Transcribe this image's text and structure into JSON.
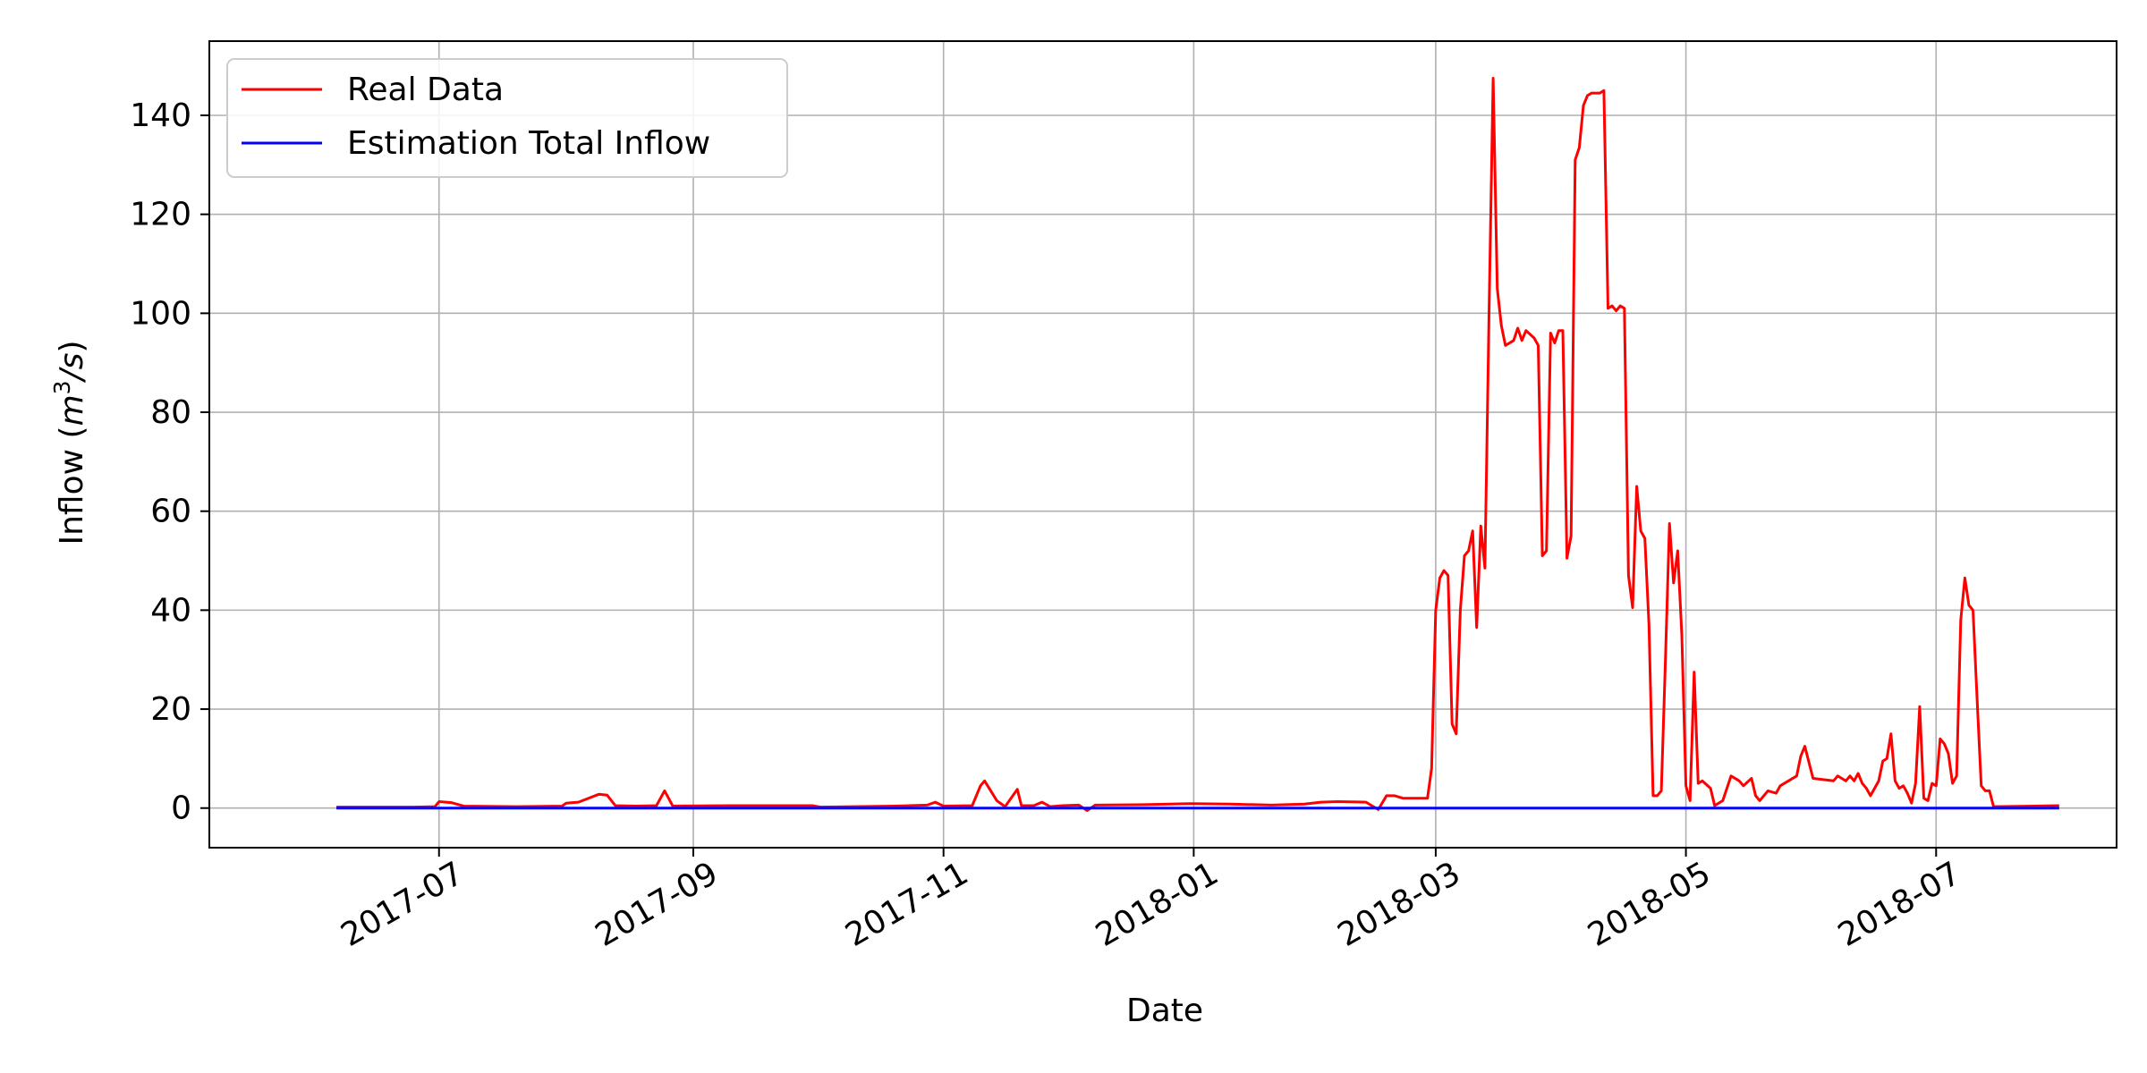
{
  "chart_data": {
    "type": "line",
    "xlabel": "Date",
    "ylabel": "Inflow",
    "ylabel_unit_base": "m",
    "ylabel_unit_exp": "3",
    "ylabel_unit_rest": "/s",
    "xlim": [
      "2017-05-06",
      "2018-08-14"
    ],
    "ylim": [
      -8,
      155
    ],
    "grid": true,
    "legend_position": "upper left",
    "x_ticks": [
      "2017-07",
      "2017-09",
      "2017-11",
      "2018-01",
      "2018-03",
      "2018-05",
      "2018-07"
    ],
    "x_tick_dates": [
      "2017-07-01",
      "2017-09-01",
      "2017-11-01",
      "2018-01-01",
      "2018-03-01",
      "2018-05-01",
      "2018-07-01"
    ],
    "y_ticks": [
      0,
      20,
      40,
      60,
      80,
      100,
      120,
      140
    ],
    "series": [
      {
        "name": "Real Data",
        "color": "#ff0000",
        "points": [
          [
            "2017-06-06",
            0.2
          ],
          [
            "2017-06-25",
            0.2
          ],
          [
            "2017-06-30",
            0.3
          ],
          [
            "2017-07-01",
            1.3
          ],
          [
            "2017-07-04",
            1.1
          ],
          [
            "2017-07-07",
            0.4
          ],
          [
            "2017-07-20",
            0.3
          ],
          [
            "2017-07-31",
            0.4
          ],
          [
            "2017-08-01",
            1.0
          ],
          [
            "2017-08-04",
            1.2
          ],
          [
            "2017-08-09",
            2.8
          ],
          [
            "2017-08-11",
            2.6
          ],
          [
            "2017-08-13",
            0.5
          ],
          [
            "2017-08-18",
            0.4
          ],
          [
            "2017-08-23",
            0.5
          ],
          [
            "2017-08-25",
            3.5
          ],
          [
            "2017-08-27",
            0.4
          ],
          [
            "2017-09-10",
            0.5
          ],
          [
            "2017-09-30",
            0.5
          ],
          [
            "2017-10-02",
            0.2
          ],
          [
            "2017-10-20",
            0.4
          ],
          [
            "2017-10-28",
            0.6
          ],
          [
            "2017-10-30",
            1.2
          ],
          [
            "2017-11-01",
            0.4
          ],
          [
            "2017-11-08",
            0.5
          ],
          [
            "2017-11-10",
            4.5
          ],
          [
            "2017-11-11",
            5.5
          ],
          [
            "2017-11-14",
            1.5
          ],
          [
            "2017-11-16",
            0.3
          ],
          [
            "2017-11-19",
            3.8
          ],
          [
            "2017-11-20",
            0.5
          ],
          [
            "2017-11-23",
            0.5
          ],
          [
            "2017-11-25",
            1.2
          ],
          [
            "2017-11-27",
            0.3
          ],
          [
            "2017-11-30",
            0.5
          ],
          [
            "2017-12-04",
            0.6
          ],
          [
            "2017-12-06",
            -0.5
          ],
          [
            "2017-12-08",
            0.6
          ],
          [
            "2017-12-20",
            0.7
          ],
          [
            "2017-12-31",
            0.9
          ],
          [
            "2018-01-10",
            0.8
          ],
          [
            "2018-01-20",
            0.6
          ],
          [
            "2018-01-28",
            0.8
          ],
          [
            "2018-02-01",
            1.2
          ],
          [
            "2018-02-05",
            1.3
          ],
          [
            "2018-02-12",
            1.2
          ],
          [
            "2018-02-15",
            -0.3
          ],
          [
            "2018-02-17",
            2.5
          ],
          [
            "2018-02-19",
            2.5
          ],
          [
            "2018-02-21",
            2.0
          ],
          [
            "2018-02-27",
            2.0
          ],
          [
            "2018-02-28",
            8.0
          ],
          [
            "2018-03-01",
            40.0
          ],
          [
            "2018-03-02",
            46.5
          ],
          [
            "2018-03-03",
            48.0
          ],
          [
            "2018-03-04",
            47.0
          ],
          [
            "2018-03-05",
            17.0
          ],
          [
            "2018-03-06",
            15.0
          ],
          [
            "2018-03-07",
            40.0
          ],
          [
            "2018-03-08",
            51.0
          ],
          [
            "2018-03-09",
            52.0
          ],
          [
            "2018-03-10",
            56.0
          ],
          [
            "2018-03-11",
            36.5
          ],
          [
            "2018-03-12",
            57.0
          ],
          [
            "2018-03-13",
            48.5
          ],
          [
            "2018-03-14",
            100.0
          ],
          [
            "2018-03-15",
            147.5
          ],
          [
            "2018-03-16",
            105.0
          ],
          [
            "2018-03-17",
            97.5
          ],
          [
            "2018-03-18",
            93.5
          ],
          [
            "2018-03-20",
            94.5
          ],
          [
            "2018-03-21",
            97.0
          ],
          [
            "2018-03-22",
            94.5
          ],
          [
            "2018-03-23",
            96.5
          ],
          [
            "2018-03-25",
            95.0
          ],
          [
            "2018-03-26",
            93.5
          ],
          [
            "2018-03-27",
            51.0
          ],
          [
            "2018-03-28",
            52.0
          ],
          [
            "2018-03-29",
            96.0
          ],
          [
            "2018-03-30",
            94.0
          ],
          [
            "2018-03-31",
            96.5
          ],
          [
            "2018-04-01",
            96.5
          ],
          [
            "2018-04-02",
            50.5
          ],
          [
            "2018-04-03",
            55.0
          ],
          [
            "2018-04-04",
            131.0
          ],
          [
            "2018-04-05",
            133.5
          ],
          [
            "2018-04-06",
            142.0
          ],
          [
            "2018-04-07",
            144.0
          ],
          [
            "2018-04-08",
            144.5
          ],
          [
            "2018-04-10",
            144.5
          ],
          [
            "2018-04-11",
            145.0
          ],
          [
            "2018-04-12",
            101.0
          ],
          [
            "2018-04-13",
            101.5
          ],
          [
            "2018-04-14",
            100.5
          ],
          [
            "2018-04-15",
            101.5
          ],
          [
            "2018-04-16",
            101.0
          ],
          [
            "2018-04-17",
            47.0
          ],
          [
            "2018-04-18",
            40.5
          ],
          [
            "2018-04-19",
            65.0
          ],
          [
            "2018-04-20",
            56.0
          ],
          [
            "2018-04-21",
            54.5
          ],
          [
            "2018-04-22",
            37.0
          ],
          [
            "2018-04-23",
            2.5
          ],
          [
            "2018-04-24",
            2.5
          ],
          [
            "2018-04-25",
            3.5
          ],
          [
            "2018-04-26",
            30.0
          ],
          [
            "2018-04-27",
            57.5
          ],
          [
            "2018-04-28",
            45.5
          ],
          [
            "2018-04-29",
            52.0
          ],
          [
            "2018-04-30",
            35.0
          ],
          [
            "2018-05-01",
            4.5
          ],
          [
            "2018-05-02",
            1.5
          ],
          [
            "2018-05-03",
            27.5
          ],
          [
            "2018-05-04",
            5.0
          ],
          [
            "2018-05-05",
            5.5
          ],
          [
            "2018-05-07",
            4.0
          ],
          [
            "2018-05-08",
            0.5
          ],
          [
            "2018-05-10",
            1.5
          ],
          [
            "2018-05-12",
            6.5
          ],
          [
            "2018-05-14",
            5.5
          ],
          [
            "2018-05-15",
            4.5
          ],
          [
            "2018-05-17",
            6.0
          ],
          [
            "2018-05-18",
            2.5
          ],
          [
            "2018-05-19",
            1.5
          ],
          [
            "2018-05-21",
            3.5
          ],
          [
            "2018-05-23",
            3.0
          ],
          [
            "2018-05-24",
            4.5
          ],
          [
            "2018-05-26",
            5.5
          ],
          [
            "2018-05-28",
            6.5
          ],
          [
            "2018-05-29",
            10.5
          ],
          [
            "2018-05-30",
            12.5
          ],
          [
            "2018-06-01",
            6.0
          ],
          [
            "2018-06-06",
            5.5
          ],
          [
            "2018-06-07",
            6.5
          ],
          [
            "2018-06-08",
            6.0
          ],
          [
            "2018-06-09",
            5.5
          ],
          [
            "2018-06-10",
            6.5
          ],
          [
            "2018-06-11",
            5.5
          ],
          [
            "2018-06-12",
            7.0
          ],
          [
            "2018-06-13",
            5.0
          ],
          [
            "2018-06-14",
            4.0
          ],
          [
            "2018-06-15",
            2.5
          ],
          [
            "2018-06-16",
            4.0
          ],
          [
            "2018-06-17",
            5.5
          ],
          [
            "2018-06-18",
            9.5
          ],
          [
            "2018-06-19",
            10.0
          ],
          [
            "2018-06-20",
            15.0
          ],
          [
            "2018-06-21",
            5.5
          ],
          [
            "2018-06-22",
            4.0
          ],
          [
            "2018-06-23",
            4.5
          ],
          [
            "2018-06-24",
            3.0
          ],
          [
            "2018-06-25",
            1.0
          ],
          [
            "2018-06-26",
            5.0
          ],
          [
            "2018-06-27",
            20.5
          ],
          [
            "2018-06-28",
            2.0
          ],
          [
            "2018-06-29",
            1.5
          ],
          [
            "2018-06-30",
            5.0
          ],
          [
            "2018-07-01",
            4.5
          ],
          [
            "2018-07-02",
            14.0
          ],
          [
            "2018-07-03",
            13.0
          ],
          [
            "2018-07-04",
            11.0
          ],
          [
            "2018-07-05",
            5.0
          ],
          [
            "2018-07-06",
            6.5
          ],
          [
            "2018-07-07",
            38.0
          ],
          [
            "2018-07-08",
            46.5
          ],
          [
            "2018-07-09",
            41.0
          ],
          [
            "2018-07-10",
            40.0
          ],
          [
            "2018-07-11",
            22.0
          ],
          [
            "2018-07-12",
            4.5
          ],
          [
            "2018-07-13",
            3.5
          ],
          [
            "2018-07-14",
            3.5
          ],
          [
            "2018-07-15",
            0.3
          ],
          [
            "2018-07-25",
            0.4
          ],
          [
            "2018-07-31",
            0.5
          ]
        ]
      },
      {
        "name": "Estimation Total Inflow",
        "color": "#0000ff",
        "points": [
          [
            "2017-06-06",
            0
          ],
          [
            "2018-07-31",
            0
          ]
        ]
      }
    ]
  }
}
